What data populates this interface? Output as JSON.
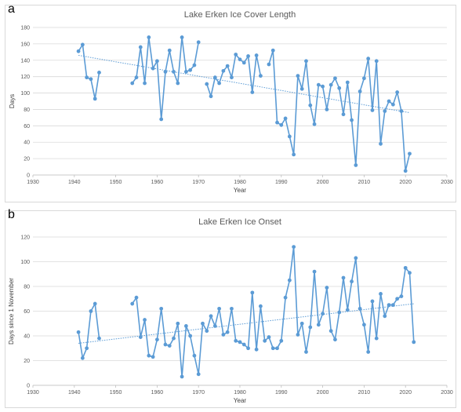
{
  "chart_data": [
    {
      "type": "line",
      "panel": "a",
      "title": "Lake Erken Ice Cover Length",
      "xlabel": "Year",
      "ylabel": "Days",
      "xlim": [
        1930,
        2030
      ],
      "ylim": [
        0,
        180
      ],
      "xticks": [
        1930,
        1940,
        1950,
        1960,
        1970,
        1980,
        1990,
        2000,
        2010,
        2020,
        2030
      ],
      "yticks": [
        0,
        20,
        40,
        60,
        80,
        100,
        120,
        140,
        160,
        180
      ],
      "grid": "horizontal",
      "trendline": {
        "style": "dotted",
        "linear": [
          [
            1941,
            146
          ],
          [
            2021,
            76
          ]
        ]
      },
      "series": [
        {
          "color": "#5b9bd5",
          "segments": [
            [
              [
                1941,
                151
              ],
              [
                1942,
                159
              ],
              [
                1943,
                119
              ],
              [
                1944,
                117
              ],
              [
                1945,
                93
              ],
              [
                1946,
                125
              ]
            ],
            [
              [
                1954,
                112
              ],
              [
                1955,
                119
              ],
              [
                1956,
                156
              ],
              [
                1957,
                112
              ],
              [
                1958,
                168
              ],
              [
                1959,
                130
              ],
              [
                1960,
                139
              ],
              [
                1961,
                68
              ],
              [
                1962,
                126
              ],
              [
                1963,
                152
              ],
              [
                1964,
                126
              ],
              [
                1965,
                112
              ],
              [
                1966,
                168
              ],
              [
                1967,
                126
              ],
              [
                1968,
                128
              ],
              [
                1969,
                134
              ],
              [
                1970,
                162
              ]
            ],
            [
              [
                1972,
                111
              ],
              [
                1973,
                96
              ],
              [
                1974,
                119
              ],
              [
                1975,
                112
              ],
              [
                1976,
                127
              ],
              [
                1977,
                133
              ],
              [
                1978,
                119
              ],
              [
                1979,
                147
              ],
              [
                1980,
                141
              ],
              [
                1981,
                137
              ],
              [
                1982,
                145
              ],
              [
                1983,
                101
              ],
              [
                1984,
                146
              ],
              [
                1985,
                121
              ]
            ],
            [
              [
                1987,
                135
              ],
              [
                1988,
                152
              ],
              [
                1989,
                64
              ],
              [
                1990,
                61
              ],
              [
                1991,
                69
              ],
              [
                1992,
                47
              ],
              [
                1993,
                25
              ],
              [
                1994,
                121
              ],
              [
                1995,
                105
              ],
              [
                1996,
                139
              ],
              [
                1997,
                85
              ],
              [
                1998,
                62
              ],
              [
                1999,
                110
              ],
              [
                2000,
                108
              ],
              [
                2001,
                80
              ],
              [
                2002,
                110
              ],
              [
                2003,
                118
              ],
              [
                2004,
                106
              ],
              [
                2005,
                74
              ],
              [
                2006,
                113
              ],
              [
                2007,
                67
              ],
              [
                2008,
                12
              ],
              [
                2009,
                102
              ],
              [
                2010,
                118
              ],
              [
                2011,
                142
              ],
              [
                2012,
                79
              ],
              [
                2013,
                139
              ],
              [
                2014,
                38
              ],
              [
                2015,
                78
              ],
              [
                2016,
                90
              ],
              [
                2017,
                86
              ],
              [
                2018,
                101
              ],
              [
                2019,
                78
              ],
              [
                2020,
                5
              ],
              [
                2021,
                26
              ]
            ]
          ]
        }
      ]
    },
    {
      "type": "line",
      "panel": "b",
      "title": "Lake Erken Ice Onset",
      "xlabel": "Year",
      "ylabel": "Days since 1 November",
      "xlim": [
        1930,
        2030
      ],
      "ylim": [
        0,
        120
      ],
      "xticks": [
        1930,
        1940,
        1950,
        1960,
        1970,
        1980,
        1990,
        2000,
        2010,
        2020,
        2030
      ],
      "yticks": [
        0,
        20,
        40,
        60,
        80,
        100,
        120
      ],
      "grid": "horizontal",
      "trendline": {
        "style": "dotted",
        "linear": [
          [
            1941,
            34
          ],
          [
            2022,
            66
          ]
        ]
      },
      "series": [
        {
          "color": "#5b9bd5",
          "segments": [
            [
              [
                1941,
                43
              ],
              [
                1942,
                22
              ],
              [
                1943,
                30
              ],
              [
                1944,
                60
              ],
              [
                1945,
                66
              ],
              [
                1946,
                38
              ]
            ],
            [
              [
                1954,
                66
              ],
              [
                1955,
                71
              ],
              [
                1956,
                39
              ],
              [
                1957,
                53
              ],
              [
                1958,
                24
              ],
              [
                1959,
                23
              ],
              [
                1960,
                37
              ],
              [
                1961,
                62
              ],
              [
                1962,
                33
              ],
              [
                1963,
                32
              ],
              [
                1964,
                38
              ],
              [
                1965,
                50
              ],
              [
                1966,
                7
              ],
              [
                1967,
                48
              ],
              [
                1968,
                40
              ],
              [
                1969,
                24
              ],
              [
                1970,
                9
              ],
              [
                1971,
                50
              ],
              [
                1972,
                44
              ],
              [
                1973,
                56
              ],
              [
                1974,
                48
              ],
              [
                1975,
                62
              ],
              [
                1976,
                41
              ],
              [
                1977,
                43
              ],
              [
                1978,
                62
              ],
              [
                1979,
                36
              ],
              [
                1980,
                35
              ],
              [
                1981,
                33
              ],
              [
                1982,
                30
              ],
              [
                1983,
                75
              ],
              [
                1984,
                29
              ],
              [
                1985,
                64
              ],
              [
                1986,
                36
              ],
              [
                1987,
                39
              ],
              [
                1988,
                30
              ],
              [
                1989,
                30
              ],
              [
                1990,
                36
              ],
              [
                1991,
                71
              ],
              [
                1992,
                85
              ],
              [
                1993,
                112
              ],
              [
                1994,
                41
              ],
              [
                1995,
                50
              ],
              [
                1996,
                27
              ],
              [
                1997,
                47
              ],
              [
                1998,
                92
              ],
              [
                1999,
                49
              ],
              [
                2000,
                58
              ],
              [
                2001,
                79
              ],
              [
                2002,
                44
              ],
              [
                2003,
                37
              ],
              [
                2004,
                59
              ],
              [
                2005,
                87
              ],
              [
                2006,
                61
              ],
              [
                2007,
                84
              ],
              [
                2008,
                103
              ],
              [
                2009,
                62
              ],
              [
                2010,
                49
              ],
              [
                2011,
                27
              ],
              [
                2012,
                68
              ],
              [
                2013,
                38
              ],
              [
                2014,
                74
              ],
              [
                2015,
                56
              ],
              [
                2016,
                65
              ],
              [
                2017,
                65
              ],
              [
                2018,
                70
              ],
              [
                2019,
                72
              ],
              [
                2020,
                95
              ],
              [
                2021,
                91
              ],
              [
                2022,
                35
              ]
            ]
          ]
        }
      ]
    }
  ],
  "panels": {
    "a": "a",
    "b": "b"
  }
}
